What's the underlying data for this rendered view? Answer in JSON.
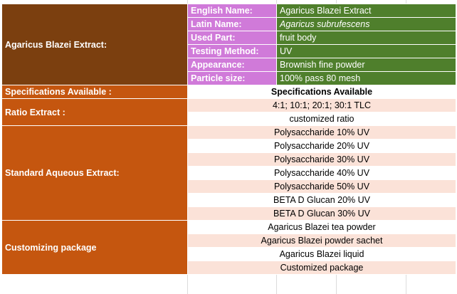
{
  "product": {
    "name_cell": "Agaricus Blazei Extract:",
    "attributes": [
      {
        "label": "English Name:",
        "value": "Agaricus Blazei Extract",
        "italic": false
      },
      {
        "label": "Latin Name:",
        "value": "Agaricus subrufescens",
        "italic": true
      },
      {
        "label": "Used Part:",
        "value": "fruit body",
        "italic": false
      },
      {
        "label": "Testing Method:",
        "value": "UV",
        "italic": false
      },
      {
        "label": "Appearance:",
        "value": "Brownish fine powder",
        "italic": false
      },
      {
        "label": "Particle size:",
        "value": "100% pass 80 mesh",
        "italic": false
      }
    ]
  },
  "specifications": {
    "left_label": "Specifications Available  :",
    "header": "Specifications Available"
  },
  "ratio_extract": {
    "left_label": "Ratio Extract :",
    "rows": [
      "4:1; 10:1; 20:1; 30:1 TLC",
      "customized ratio"
    ]
  },
  "standard_aqueous": {
    "left_label": "Standard Aqueous Extract:",
    "rows": [
      "Polysaccharide 10% UV",
      "Polysaccharide 20% UV",
      "Polysaccharide 30% UV",
      "Polysaccharide 40% UV",
      "Polysaccharide 50% UV",
      "BETA D Glucan 20% UV",
      "BETA D Glucan 30% UV"
    ]
  },
  "customizing": {
    "left_label": "Customizing package",
    "rows": [
      "Agaricus Blazei tea powder",
      "Agaricus Blazei powder sachet",
      "Agaricus Blazei liquid",
      "Customized package"
    ]
  },
  "colors": {
    "dark_brown": "#7b3f0f",
    "orange": "#c5560f",
    "label_pink": "#d07ad9",
    "value_green": "#4f7f2c",
    "row_pink": "#fbe2d8"
  }
}
